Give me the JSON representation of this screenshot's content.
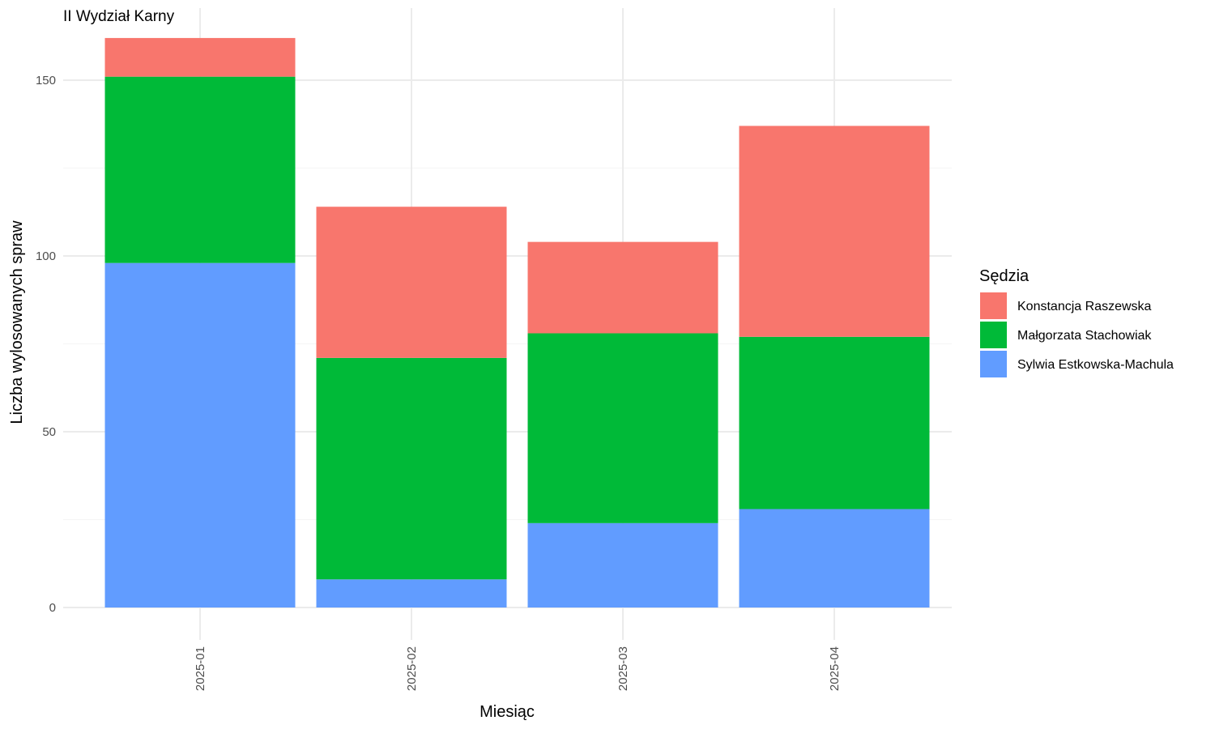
{
  "chart_data": {
    "type": "bar",
    "stacked": true,
    "title": "II Wydział Karny",
    "xlabel": "Miesiąc",
    "ylabel": "Liczba wylosowanych spraw",
    "categories": [
      "2025-01",
      "2025-02",
      "2025-03",
      "2025-04"
    ],
    "series": [
      {
        "name": "Sylwia Estkowska-Machula",
        "color": "#619CFF",
        "values": [
          98,
          8,
          24,
          28
        ]
      },
      {
        "name": "Małgorzata Stachowiak",
        "color": "#00BA38",
        "values": [
          53,
          63,
          54,
          49
        ]
      },
      {
        "name": "Konstancja Raszewska",
        "color": "#F8766D",
        "values": [
          11,
          43,
          26,
          60
        ]
      }
    ],
    "ylim": [
      0,
      170
    ],
    "yticks": [
      0,
      50,
      100,
      150
    ],
    "grid": true,
    "legend": {
      "title": "Sędzia",
      "position": "right",
      "order": [
        "Konstancja Raszewska",
        "Małgorzata Stachowiak",
        "Sylwia Estkowska-Machula"
      ]
    }
  }
}
